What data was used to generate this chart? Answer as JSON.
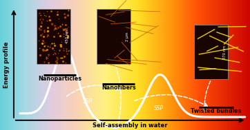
{
  "ylabel": "Energy profile",
  "xlabel": "Self-assembly in water",
  "labels": [
    "Nanoparticles",
    "Nanofibers",
    "Twisted bundles"
  ],
  "scale1": "450 nm",
  "scale2": "2 μm",
  "scale3": "370 nm",
  "curve_color": "#ffffff",
  "curve_lw": 2.2,
  "bg_stops": [
    [
      0.0,
      [
        0.4,
        0.82,
        0.85
      ]
    ],
    [
      0.1,
      [
        0.65,
        0.85,
        0.9
      ]
    ],
    [
      0.2,
      [
        0.88,
        0.8,
        0.88
      ]
    ],
    [
      0.3,
      [
        0.98,
        0.82,
        0.72
      ]
    ],
    [
      0.42,
      [
        1.0,
        0.95,
        0.5
      ]
    ],
    [
      0.55,
      [
        1.0,
        0.88,
        0.15
      ]
    ],
    [
      0.68,
      [
        1.0,
        0.6,
        0.05
      ]
    ],
    [
      0.8,
      [
        1.0,
        0.3,
        0.02
      ]
    ],
    [
      1.0,
      [
        0.8,
        0.02,
        0.0
      ]
    ]
  ]
}
